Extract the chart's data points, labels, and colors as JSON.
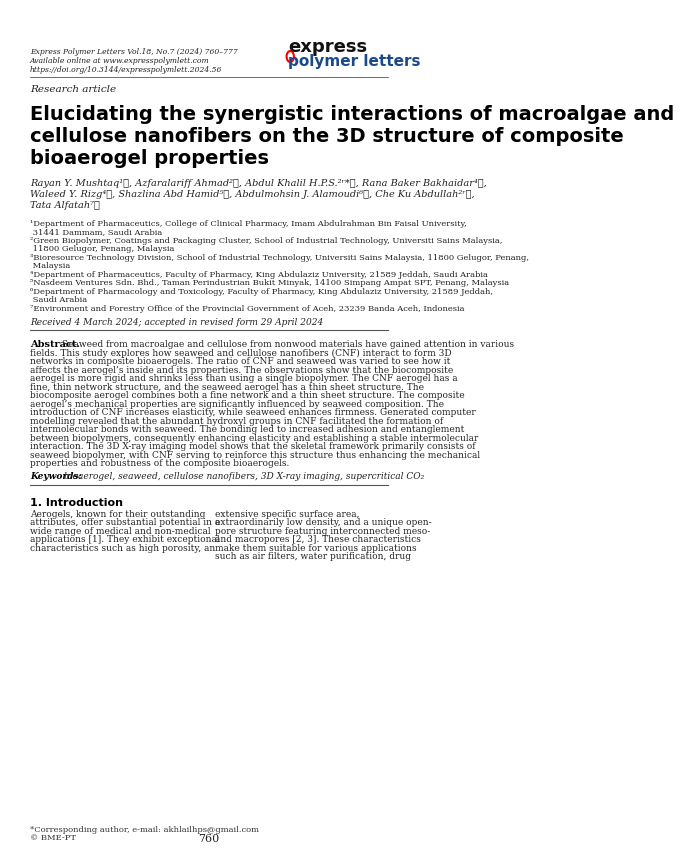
{
  "journal_info": "Express Polymer Letters Vol.18, No.7 (2024) 760–777\nAvailable online at www.expresspolymlett.com\nhttps://doi.org/10.3144/expresspolymlett.2024.56",
  "article_type": "Research article",
  "title": "Elucidating the synergistic interactions of macroalgae and\ncellulose nanofibers on the 3D structure of composite\nbioaerogel properties",
  "authors": "Rayan Y. Mushtaq¹ⓘ, Azfaralariff Ahmad²ⓘ, Abdul Khalil H.P.S.²ʳ*ⓘ, Rana Baker Bakhaidar⁴ⓘ,\nWaleed Y. Rizg⁴ⓘ, Shazlina Abd Hamid⁵ⓘ, Abdulmohsin J. Alamoudi⁶ⓘ, Che Ku Abdullah²ʳⓘ,\nTata Alfatah⁷ⓘ",
  "affiliations": [
    "¹Department of Pharmaceutics, College of Clinical Pharmacy, Imam Abdulrahman Bin Faisal University,\n 31441 Dammam, Saudi Arabia",
    "²Green Biopolymer, Coatings and Packaging Cluster, School of Industrial Technology, Universiti Sains Malaysia,\n 11800 Gelugor, Penang, Malaysia",
    "³Bioresource Technology Division, School of Industrial Technology, Universiti Sains Malaysia, 11800 Gelugor, Penang,\n Malaysia",
    "⁴Department of Pharmaceutics, Faculty of Pharmacy, King Abdulaziz University, 21589 Jeddah, Saudi Arabia",
    "⁵Nasdeem Ventures Sdn. Bhd., Taman Perindustrian Bukit Minyak, 14100 Simpang Ampat SPT, Penang, Malaysia",
    "⁶Department of Pharmacology and Toxicology, Faculty of Pharmacy, King Abdulaziz University, 21589 Jeddah,\n Saudi Arabia",
    "⁷Environment and Forestry Office of the Provincial Government of Aceh, 23239 Banda Aceh, Indonesia"
  ],
  "received": "Received 4 March 2024; accepted in revised form 29 April 2024",
  "abstract_title": "Abstract.",
  "abstract_text": "Seaweed from macroalgae and cellulose from nonwood materials have gained attention in various fields. This study explores how seaweed and cellulose nanofibers (CNF) interact to form 3D networks in composite bioaerogels. The ratio of CNF and seaweed was varied to see how it affects the aerogel’s inside and its properties. The observations show that the biocomposite aerogel is more rigid and shrinks less than using a single biopolymer. The CNF aerogel has a fine, thin network structure, and the seaweed aerogel has a thin sheet structure. The biocomposite aerogel combines both a fine network and a thin sheet structure. The composite aerogel’s mechanical properties are significantly influenced by seaweed composition. The introduction of CNF increases elasticity, while seaweed enhances firmness. Generated computer modelling revealed that the abundant hydroxyl groups in CNF facilitated the formation of intermolecular bonds with seaweed. The bonding led to increased adhesion and entanglement between biopolymers, consequently enhancing elasticity and establishing a stable intermolecular interaction. The 3D X-ray imaging model shows that the skeletal framework primarily consists of seaweed biopolymer, with CNF serving to reinforce this structure thus enhancing the mechanical properties and robustness of the composite bioaerogels.",
  "keywords": "Keywords: bioaerogel, seaweed, cellulose nanofibers, 3D X-ray imaging, supercritical CO₂",
  "intro_title": "1. Introduction",
  "intro_text_col1": "Aerogels, known for their outstanding attributes, offer substantial potential in a wide range of medical and non-medical applications [1]. They exhibit exceptional characteristics such as high porosity, an",
  "intro_text_col2": "extensive specific surface area, extraordinarily low density, and a unique open-pore structure featuring interconnected meso- and macropores [2, 3]. These characteristics make them suitable for various applications such as air filters, water purification, drug",
  "footer_note": "*Corresponding author, e-mail: akhlailhps@gmail.com\n© BME-PT",
  "page_number": "760",
  "bg_color": "#ffffff",
  "text_color": "#000000",
  "journal_color": "#2b2b2b",
  "express_color_ex": "#000000",
  "express_color_press": "#cc0000",
  "polymer_color": "#1a4a8a",
  "letters_color": "#1a4a8a"
}
